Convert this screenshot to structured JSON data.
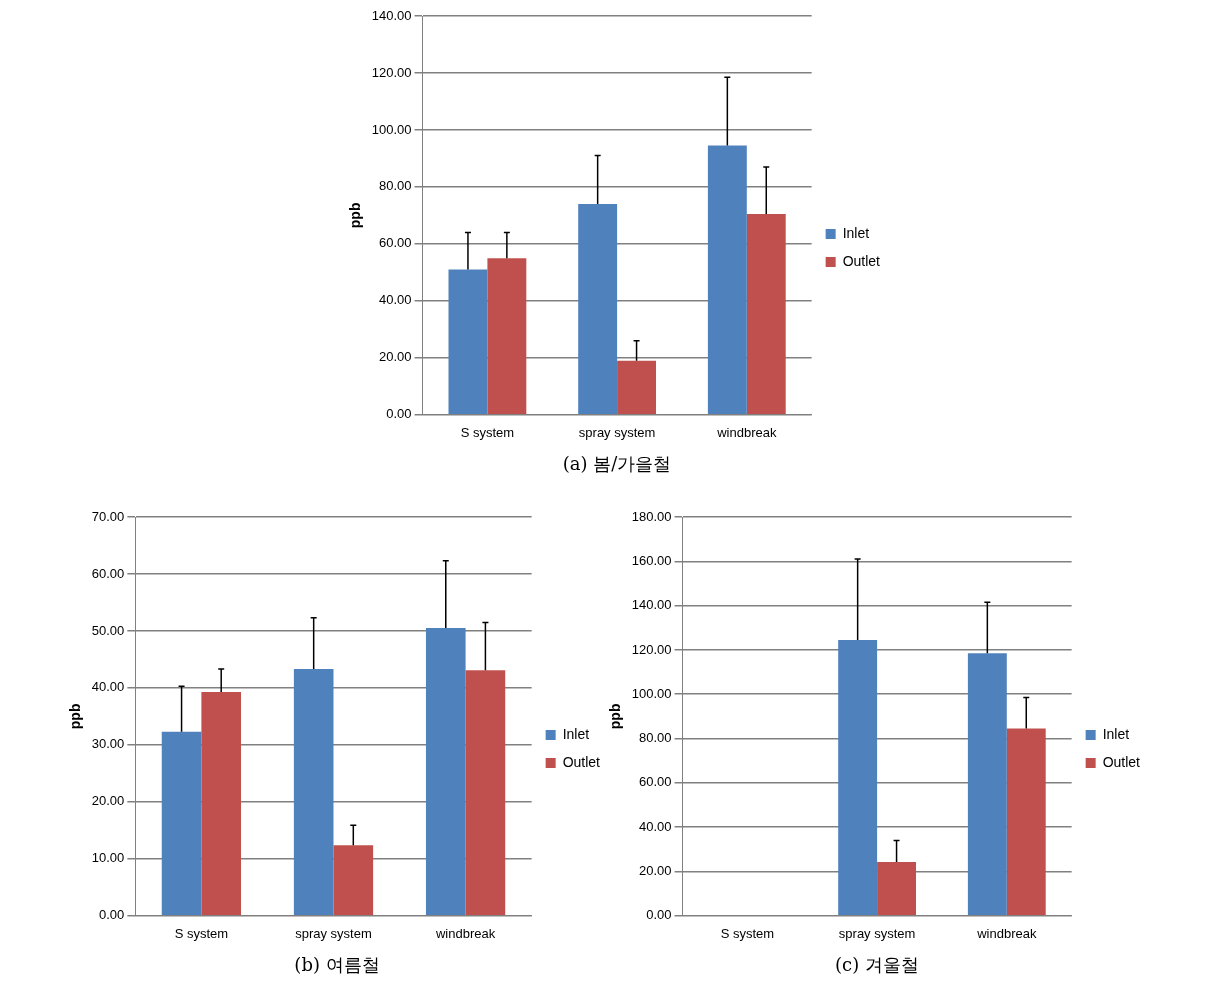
{
  "chart_data": [
    {
      "type": "bar",
      "title": "(a) 봄/가을철",
      "y_label": "ppb",
      "categories": [
        "S system",
        "spray system",
        "windbreak"
      ],
      "series": [
        {
          "name": "Inlet",
          "color": "#4f81bd",
          "values": [
            51.0,
            74.0,
            94.5
          ],
          "errors": [
            13.0,
            17.0,
            24.0
          ]
        },
        {
          "name": "Outlet",
          "color": "#c0504d",
          "values": [
            55.0,
            19.0,
            70.5
          ],
          "errors": [
            9.0,
            7.0,
            16.5
          ]
        }
      ],
      "ylim": [
        0,
        140
      ],
      "yticks": [
        {
          "value": 0,
          "label": "0.00"
        },
        {
          "value": 20,
          "label": "20.00"
        },
        {
          "value": 40,
          "label": "40.00"
        },
        {
          "value": 60,
          "label": "60.00"
        },
        {
          "value": 80,
          "label": "80.00"
        },
        {
          "value": 100,
          "label": "100.00"
        },
        {
          "value": 120,
          "label": "120.00"
        },
        {
          "value": 140,
          "label": "140.00"
        }
      ],
      "grid": true,
      "legend": "right"
    },
    {
      "type": "bar",
      "title": "(b) 여름철",
      "y_label": "ppb",
      "categories": [
        "S system",
        "spray system",
        "windbreak"
      ],
      "series": [
        {
          "name": "Inlet",
          "color": "#4f81bd",
          "values": [
            32.3,
            43.3,
            50.5
          ],
          "errors": [
            8.0,
            9.0,
            11.8
          ]
        },
        {
          "name": "Outlet",
          "color": "#c0504d",
          "values": [
            39.3,
            12.4,
            43.1
          ],
          "errors": [
            4.0,
            3.5,
            8.4
          ]
        }
      ],
      "ylim": [
        0,
        70
      ],
      "yticks": [
        {
          "value": 0,
          "label": "0.00"
        },
        {
          "value": 10,
          "label": "10.00"
        },
        {
          "value": 20,
          "label": "20.00"
        },
        {
          "value": 30,
          "label": "30.00"
        },
        {
          "value": 40,
          "label": "40.00"
        },
        {
          "value": 50,
          "label": "50.00"
        },
        {
          "value": 60,
          "label": "60.00"
        },
        {
          "value": 70,
          "label": "70.00"
        }
      ],
      "grid": true,
      "legend": "right"
    },
    {
      "type": "bar",
      "title": "(c) 겨울철",
      "y_label": "ppb",
      "categories": [
        "S system",
        "spray system",
        "windbreak"
      ],
      "series": [
        {
          "name": "Inlet",
          "color": "#4f81bd",
          "values": [
            null,
            124.5,
            118.5
          ],
          "errors": [
            null,
            36.5,
            23.0
          ]
        },
        {
          "name": "Outlet",
          "color": "#c0504d",
          "values": [
            null,
            24.3,
            84.5
          ],
          "errors": [
            null,
            9.7,
            14.0
          ]
        }
      ],
      "ylim": [
        0,
        180
      ],
      "yticks": [
        {
          "value": 0,
          "label": "0.00"
        },
        {
          "value": 20,
          "label": "20.00"
        },
        {
          "value": 40,
          "label": "40.00"
        },
        {
          "value": 60,
          "label": "60.00"
        },
        {
          "value": 80,
          "label": "80.00"
        },
        {
          "value": 100,
          "label": "100.00"
        },
        {
          "value": 120,
          "label": "120.00"
        },
        {
          "value": 140,
          "label": "140.00"
        },
        {
          "value": 160,
          "label": "160.00"
        },
        {
          "value": 180,
          "label": "180.00"
        }
      ],
      "grid": true,
      "legend": "right"
    }
  ]
}
